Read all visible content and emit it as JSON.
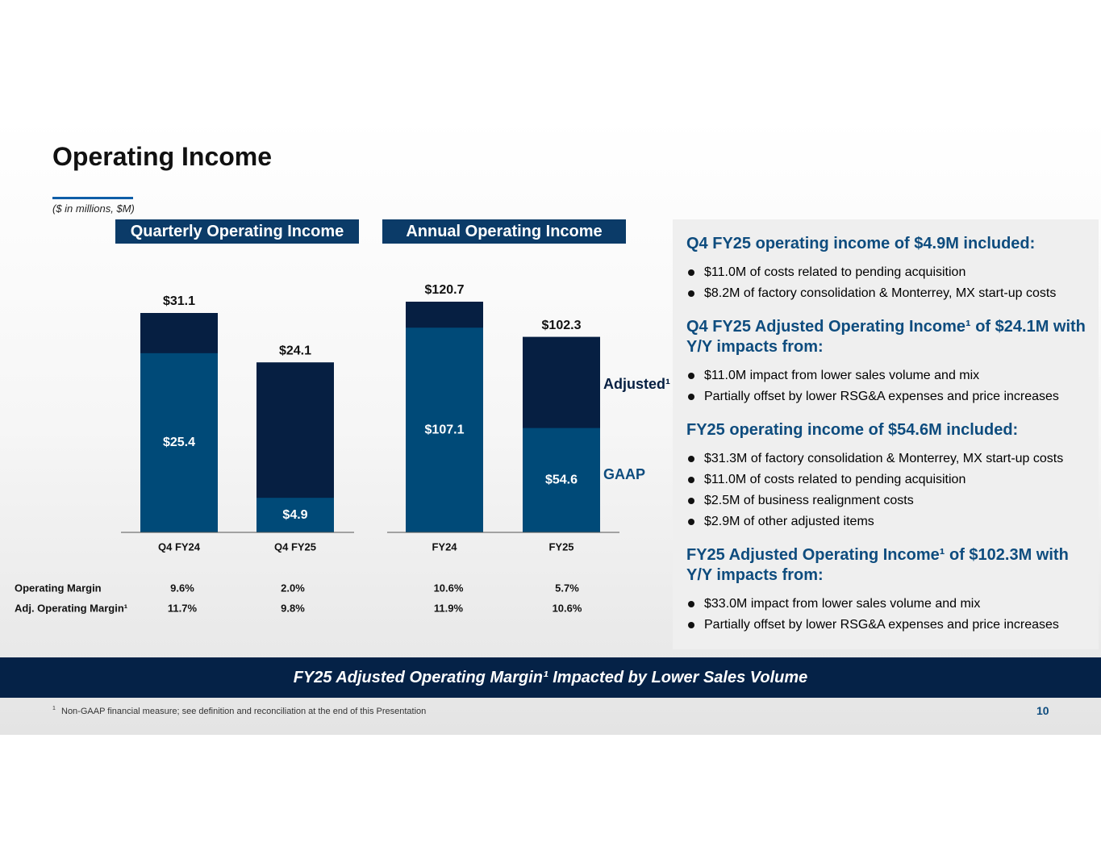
{
  "header": {
    "title": "Operating Income",
    "subtitle": "($ in millions, $M)"
  },
  "chart_data": [
    {
      "type": "bar",
      "title": "Quarterly Operating Income",
      "categories": [
        "Q4 FY24",
        "Q4 FY25"
      ],
      "series": [
        {
          "color": "#061f42",
          "values": [
            31.1,
            24.1
          ],
          "value_labels": [
            "$31.1",
            "$24.1"
          ]
        },
        {
          "color": "#004a78",
          "values": [
            25.4,
            4.9
          ],
          "value_labels": [
            "$25.4",
            "$4.9"
          ]
        }
      ]
    },
    {
      "type": "bar",
      "title": "Annual Operating Income",
      "categories": [
        "FY24",
        "FY25"
      ],
      "series": [
        {
          "name": "Adjusted¹",
          "color": "#061f42",
          "values": [
            120.7,
            102.3
          ],
          "value_labels": [
            "$120.7",
            "$102.3"
          ]
        },
        {
          "name": "GAAP",
          "color": "#004a78",
          "values": [
            107.1,
            54.6
          ],
          "value_labels": [
            "$107.1",
            "$54.6"
          ]
        }
      ]
    }
  ],
  "margins": {
    "rows": [
      {
        "label": "Operating Margin",
        "values": [
          "9.6%",
          "2.0%",
          "10.6%",
          "5.7%"
        ]
      },
      {
        "label": "Adj. Operating Margin¹",
        "values": [
          "11.7%",
          "9.8%",
          "11.9%",
          "10.6%"
        ]
      }
    ]
  },
  "panel": {
    "sections": [
      {
        "heading": "Q4 FY25 operating income of $4.9M included:",
        "bullets": [
          "$11.0M of costs related to pending acquisition",
          "$8.2M of factory consolidation & Monterrey, MX start-up costs"
        ]
      },
      {
        "heading": "Q4 FY25 Adjusted Operating Income¹ of $24.1M with Y/Y impacts from:",
        "bullets": [
          "$11.0M impact from lower sales volume and mix",
          "Partially offset by lower RSG&A expenses and price increases"
        ]
      },
      {
        "heading": "FY25 operating income of $54.6M included:",
        "bullets": [
          "$31.3M of factory consolidation & Monterrey, MX start-up costs",
          "$11.0M of costs related to pending acquisition",
          "$2.5M of business realignment costs",
          "$2.9M of other adjusted items"
        ]
      },
      {
        "heading": "FY25 Adjusted Operating Income¹ of $102.3M with Y/Y impacts from:",
        "bullets": [
          "$33.0M impact from lower sales volume and mix",
          "Partially offset by lower RSG&A expenses and price increases"
        ]
      }
    ]
  },
  "footer": {
    "banner": "FY25 Adjusted Operating Margin¹ Impacted by Lower Sales Volume",
    "footnote_mark": "1",
    "footnote": "Non-GAAP financial measure; see definition and reconciliation at the end of this Presentation",
    "page": "10"
  }
}
